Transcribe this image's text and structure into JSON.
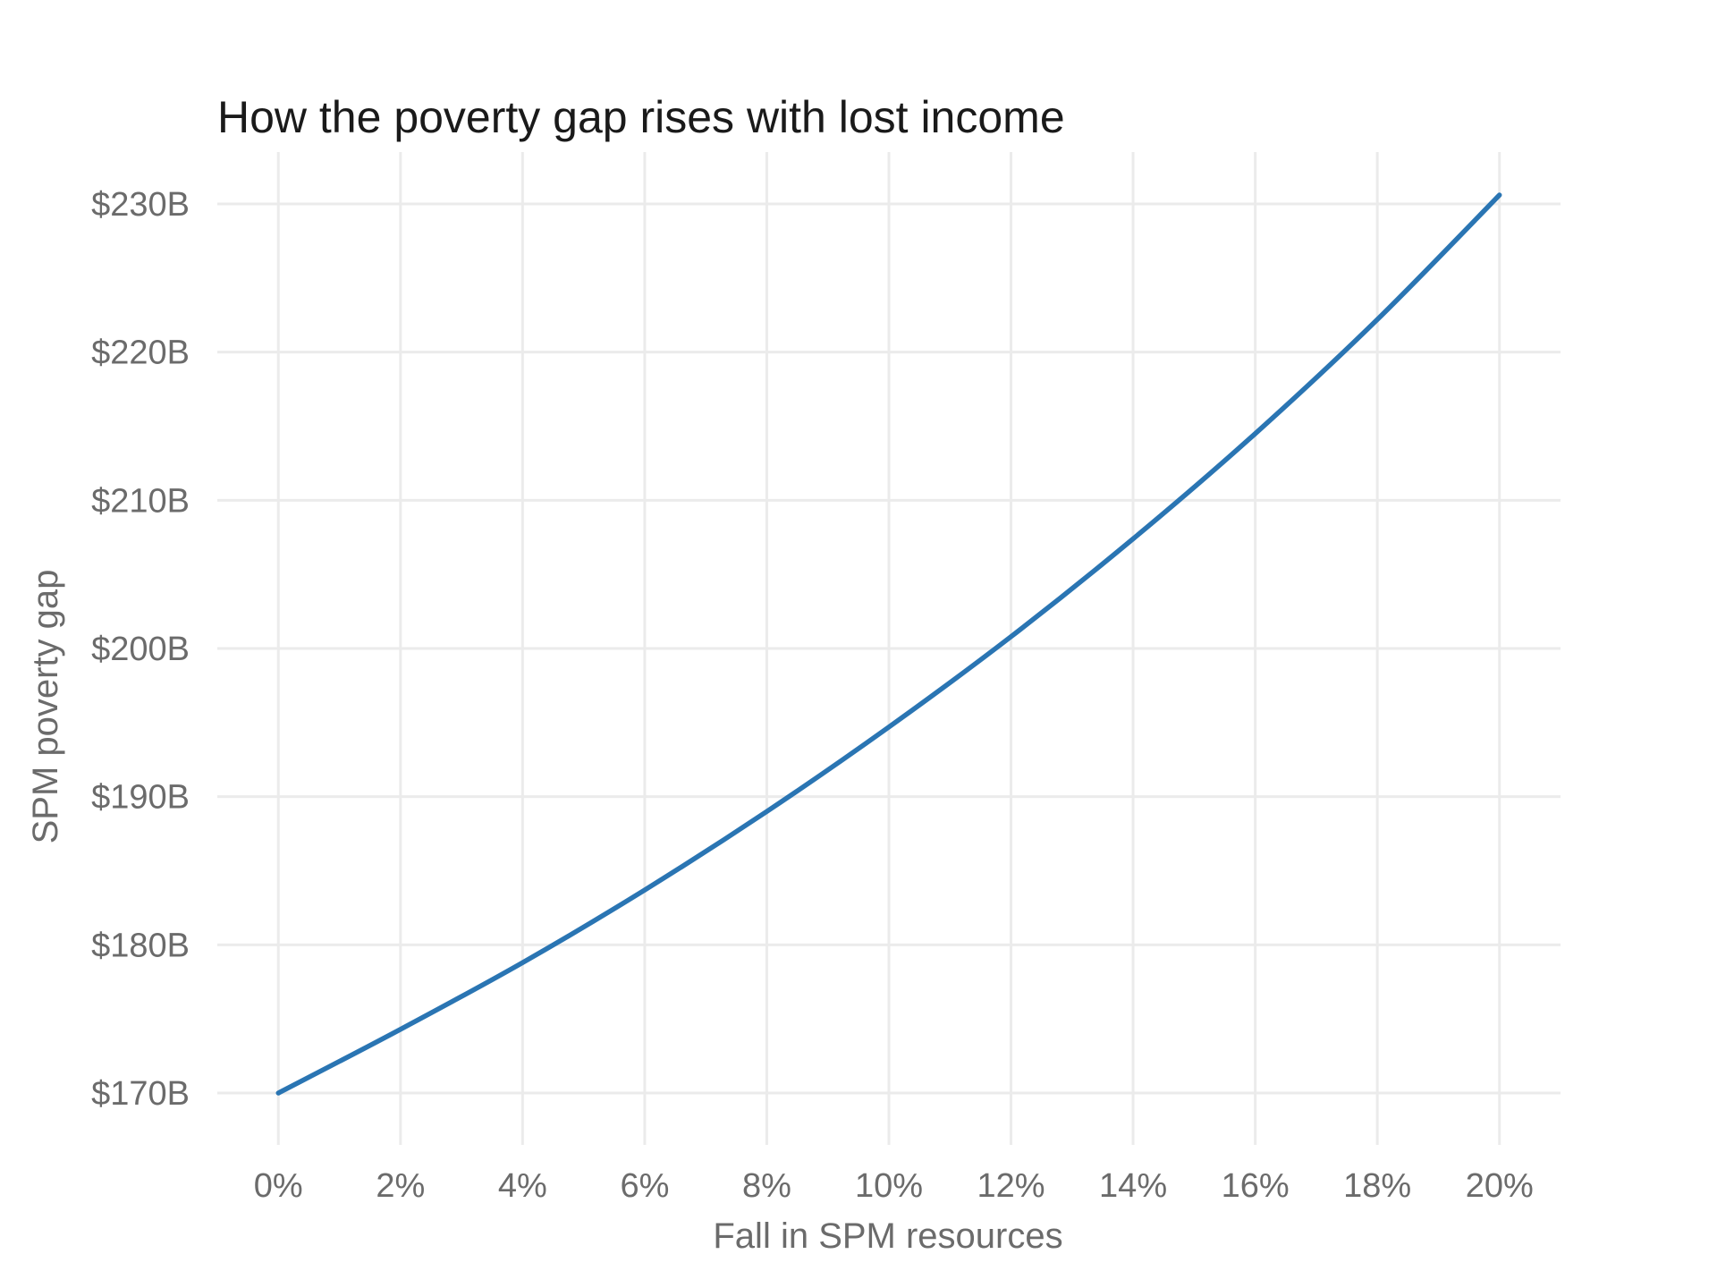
{
  "chart_data": {
    "type": "line",
    "title": "How the poverty gap rises with lost income",
    "xlabel": "Fall in SPM resources",
    "ylabel": "SPM poverty gap",
    "xlim": [
      -0.01,
      0.21
    ],
    "ylim": [
      166.5,
      233.5
    ],
    "x_ticks": [
      0,
      0.02,
      0.04,
      0.06,
      0.08,
      0.1,
      0.12,
      0.14,
      0.16,
      0.18,
      0.2
    ],
    "x_tick_labels": [
      "0%",
      "2%",
      "4%",
      "6%",
      "8%",
      "10%",
      "12%",
      "14%",
      "16%",
      "18%",
      "20%"
    ],
    "y_ticks": [
      170,
      180,
      190,
      200,
      210,
      220,
      230
    ],
    "y_tick_labels": [
      "$170B",
      "$180B",
      "$190B",
      "$200B",
      "$210B",
      "$220B",
      "$230B"
    ],
    "grid": true,
    "line_color": "#2a75b3",
    "grid_color": "#ebebeb",
    "series": [
      {
        "x": [
          0,
          0.02,
          0.04,
          0.06,
          0.08,
          0.1,
          0.12,
          0.14,
          0.16,
          0.18,
          0.2
        ],
        "y": [
          170.0,
          174.3,
          178.8,
          183.7,
          189.0,
          194.7,
          200.8,
          207.4,
          214.5,
          222.2,
          230.6
        ]
      }
    ]
  }
}
